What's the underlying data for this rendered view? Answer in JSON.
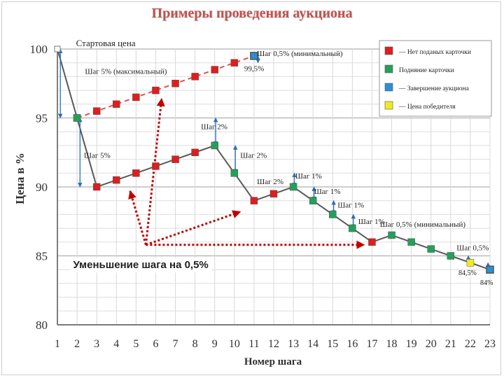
{
  "title": "Примеры проведения аукциона",
  "chart_data": {
    "type": "line",
    "xlabel": "Номер шага",
    "ylabel": "Цена в %",
    "x_ticks": [
      1,
      2,
      3,
      4,
      5,
      6,
      7,
      8,
      9,
      10,
      11,
      12,
      13,
      14,
      15,
      16,
      17,
      18,
      19,
      20,
      21,
      22,
      23
    ],
    "y_ticks": [
      80,
      85,
      90,
      95,
      100
    ],
    "xlim": [
      1,
      23
    ],
    "ylim": [
      80,
      100
    ],
    "grid": true,
    "legend_position": "top-right",
    "legend": [
      {
        "label": "— Нет поданых карточки",
        "color": "#dd1f1f"
      },
      {
        "label": "Подняние карточки",
        "color": "#23a05a"
      },
      {
        "label": "— Завершение аукциона",
        "color": "#2a8fd6"
      },
      {
        "label": "— Цена победителя",
        "color": "#f2ea1e"
      }
    ],
    "series": [
      {
        "style": "dashed",
        "color": "#d9534f",
        "points": [
          {
            "x": 2,
            "y": 95,
            "state": "raised"
          },
          {
            "x": 3,
            "y": 95.5,
            "state": "none"
          },
          {
            "x": 4,
            "y": 96,
            "state": "none"
          },
          {
            "x": 5,
            "y": 96.5,
            "state": "none"
          },
          {
            "x": 6,
            "y": 97,
            "state": "none"
          },
          {
            "x": 7,
            "y": 97.5,
            "state": "none"
          },
          {
            "x": 8,
            "y": 98,
            "state": "none"
          },
          {
            "x": 9,
            "y": 98.5,
            "state": "none"
          },
          {
            "x": 10,
            "y": 99,
            "state": "none"
          },
          {
            "x": 11,
            "y": 99.5,
            "state": "end"
          }
        ]
      },
      {
        "style": "solid",
        "color": "#595959",
        "points": [
          {
            "x": 1,
            "y": 100,
            "state": "start"
          },
          {
            "x": 2,
            "y": 95,
            "state": "raised"
          },
          {
            "x": 3,
            "y": 90,
            "state": "none"
          },
          {
            "x": 4,
            "y": 90.5,
            "state": "none"
          },
          {
            "x": 5,
            "y": 91,
            "state": "none"
          },
          {
            "x": 6,
            "y": 91.5,
            "state": "none"
          },
          {
            "x": 7,
            "y": 92,
            "state": "none"
          },
          {
            "x": 8,
            "y": 92.5,
            "state": "none"
          },
          {
            "x": 9,
            "y": 93,
            "state": "raised"
          },
          {
            "x": 10,
            "y": 91,
            "state": "raised"
          },
          {
            "x": 11,
            "y": 89,
            "state": "none"
          },
          {
            "x": 12,
            "y": 89.5,
            "state": "none"
          },
          {
            "x": 13,
            "y": 90,
            "state": "raised"
          },
          {
            "x": 14,
            "y": 89,
            "state": "raised"
          },
          {
            "x": 15,
            "y": 88,
            "state": "raised"
          },
          {
            "x": 16,
            "y": 87,
            "state": "raised"
          },
          {
            "x": 17,
            "y": 86,
            "state": "none"
          },
          {
            "x": 18,
            "y": 86.5,
            "state": "raised"
          },
          {
            "x": 19,
            "y": 86,
            "state": "raised"
          },
          {
            "x": 20,
            "y": 85.5,
            "state": "raised"
          },
          {
            "x": 21,
            "y": 85,
            "state": "raised"
          },
          {
            "x": 22,
            "y": 84.5,
            "state": "winner"
          },
          {
            "x": 23,
            "y": 84,
            "state": "end"
          }
        ]
      }
    ],
    "state_colors": {
      "start": "#ffffff",
      "none": "#dd1f1f",
      "raised": "#23a05a",
      "end": "#2a8fd6",
      "winner": "#f2ea1e"
    },
    "annotations": [
      {
        "text": "Стартовая цена",
        "x": 1.95,
        "y": 100.2,
        "size": 13
      },
      {
        "text": "Шаг 0,5% (минимальный)",
        "x": 11.15,
        "y": 99.5,
        "size": 11
      },
      {
        "text": "99,5%",
        "x": 10.5,
        "y": 98.4,
        "size": 11
      },
      {
        "text": "Шаг 5% (максимальный)",
        "x": 2.4,
        "y": 98.2,
        "size": 11
      },
      {
        "text": "Шаг 2%",
        "x": 8.3,
        "y": 94.2,
        "size": 11
      },
      {
        "text": "Шаг 5%",
        "x": 2.35,
        "y": 92.1,
        "size": 11
      },
      {
        "text": "Шаг 2%",
        "x": 10.3,
        "y": 92.1,
        "size": 11
      },
      {
        "text": "Шаг 2%",
        "x": 11.15,
        "y": 90.2,
        "size": 11
      },
      {
        "text": "Шаг 1%",
        "x": 13.1,
        "y": 90.6,
        "size": 11
      },
      {
        "text": "Шаг 1%",
        "x": 14.05,
        "y": 89.5,
        "size": 11
      },
      {
        "text": "Шаг 1%",
        "x": 15.25,
        "y": 88.5,
        "size": 11
      },
      {
        "text": "Шаг 1%",
        "x": 16.3,
        "y": 87.3,
        "size": 11
      },
      {
        "text": "Шаг 0,5% (минимальный)",
        "x": 17.4,
        "y": 87.1,
        "size": 11
      },
      {
        "text": "Шаг 0,5%",
        "x": 21.3,
        "y": 85.4,
        "size": 11
      },
      {
        "text": "84,5%",
        "x": 21.4,
        "y": 83.6,
        "size": 10
      },
      {
        "text": "84%",
        "x": 22.5,
        "y": 82.9,
        "size": 10
      },
      {
        "text": "Уменьшение шага на 0,5%",
        "x": 1.8,
        "y": 84.1,
        "size": 15,
        "bold": true,
        "font": "sans"
      }
    ],
    "step_arrows": [
      {
        "x": 1.15,
        "y1": 100,
        "y2": 95
      },
      {
        "x": 2.15,
        "y1": 95,
        "y2": 90
      },
      {
        "x": 11.2,
        "y1": 99.5,
        "y2": 99
      },
      {
        "x": 9.05,
        "y1": 93,
        "y2": 95
      },
      {
        "x": 10.05,
        "y1": 91,
        "y2": 93
      },
      {
        "x": 13.05,
        "y1": 90,
        "y2": 91
      },
      {
        "x": 14.05,
        "y1": 89,
        "y2": 90
      },
      {
        "x": 15.05,
        "y1": 88,
        "y2": 89
      },
      {
        "x": 16.05,
        "y1": 87,
        "y2": 88
      },
      {
        "x": 21.9,
        "y1": 84.5,
        "y2": 85
      },
      {
        "x": 22.9,
        "y1": 84,
        "y2": 84.5
      }
    ],
    "callout_arrows": {
      "origin": {
        "x": 5.5,
        "y": 85.8
      },
      "targets": [
        {
          "x": 6.3,
          "y": 96.4
        },
        {
          "x": 4.7,
          "y": 89.7
        },
        {
          "x": 10.3,
          "y": 88.2
        },
        {
          "x": 16.6,
          "y": 85.8
        }
      ]
    }
  }
}
